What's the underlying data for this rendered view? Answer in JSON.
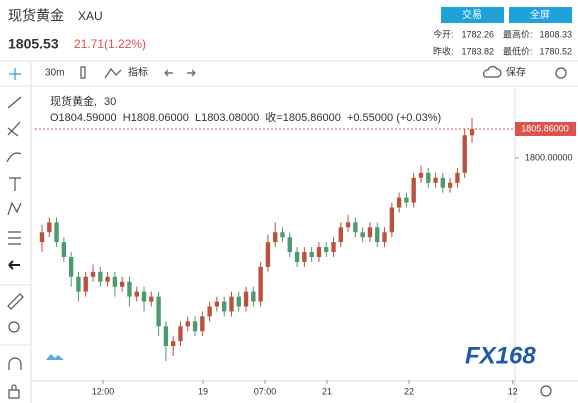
{
  "header": {
    "title": "现货黄金",
    "symbol": "XAU",
    "price": "1805.53",
    "change": "21.71(1.22%)",
    "buttons": [
      "交易",
      "全屏"
    ],
    "stats": [
      [
        "今开:",
        "1782.26",
        "最高价:",
        "1808.33"
      ],
      [
        "昨收:",
        "1783.82",
        "最低价:",
        "1780.52"
      ]
    ]
  },
  "toolbar": {
    "interval": "30m",
    "indicators": "指标",
    "save": "保存"
  },
  "legend": {
    "name": "现货黄金,",
    "interval": "30",
    "ohlc": "O1804.59000  H1808.06000  L1803.08000  收=1805.86000  +0.55000 (+0.03%)"
  },
  "logo": "FX168",
  "chart_data": {
    "type": "candlestick",
    "categories": [
      null,
      null,
      null,
      null,
      null,
      null,
      null,
      null,
      null,
      null,
      null,
      null,
      null,
      null,
      null,
      null,
      null,
      null,
      null,
      null,
      null,
      null,
      null,
      null,
      null,
      null,
      null,
      null,
      null,
      null,
      null,
      null,
      null,
      null,
      null,
      null,
      null,
      null,
      null,
      null,
      null,
      null,
      null,
      null,
      null,
      null,
      null,
      null,
      null,
      null,
      null,
      null,
      null,
      null,
      null,
      null,
      null,
      null,
      null,
      null
    ],
    "open": [
      1783,
      1785,
      1787,
      1783,
      1780,
      1776,
      1773,
      1776,
      1777,
      1775,
      1776,
      1774,
      1775,
      1772,
      1773,
      1771,
      1772,
      1766,
      1762,
      1763,
      1766,
      1767,
      1765,
      1768,
      1770,
      1771,
      1769,
      1772,
      1770,
      1773,
      1771,
      1778,
      1783,
      1785,
      1784,
      1781,
      1779,
      1781,
      1780,
      1782,
      1781,
      1783,
      1786,
      1787,
      1785,
      1784,
      1786,
      1783,
      1785,
      1790,
      1792,
      1791,
      1796,
      1797,
      1795,
      1796,
      1794,
      1795,
      1797,
      1804.59
    ],
    "high": [
      1786.5,
      1788,
      1788,
      1784,
      1781,
      1777,
      1777,
      1778.5,
      1778,
      1777,
      1777,
      1776,
      1776,
      1774,
      1774,
      1773,
      1773,
      1767,
      1764,
      1767,
      1768,
      1768,
      1769,
      1771,
      1772,
      1772,
      1773,
      1773,
      1774,
      1774,
      1779,
      1784.5,
      1787,
      1786,
      1785,
      1782,
      1782,
      1782,
      1783,
      1783,
      1784,
      1787,
      1788.5,
      1788,
      1786,
      1787,
      1787,
      1786,
      1791,
      1793,
      1793,
      1797,
      1798.5,
      1798,
      1797,
      1797,
      1796,
      1798,
      1806,
      1808.06
    ],
    "low": [
      1781,
      1784,
      1782,
      1779,
      1774,
      1771,
      1772,
      1775,
      1774,
      1774,
      1772,
      1773,
      1770,
      1771,
      1769,
      1770,
      1764,
      1759,
      1760,
      1762,
      1765,
      1764,
      1764,
      1767,
      1769,
      1768,
      1768,
      1769,
      1769,
      1770,
      1770,
      1777,
      1782,
      1783,
      1780,
      1778,
      1778,
      1779,
      1779,
      1780,
      1780,
      1782,
      1785,
      1784,
      1783,
      1783,
      1782,
      1782,
      1784,
      1789,
      1790,
      1790,
      1795,
      1794,
      1794,
      1793,
      1793,
      1794,
      1796,
      1803.08
    ],
    "close": [
      1785,
      1787,
      1783,
      1780,
      1776,
      1773,
      1776,
      1777,
      1775,
      1776,
      1774,
      1775,
      1772,
      1773,
      1771,
      1772,
      1766,
      1762,
      1763,
      1766,
      1767,
      1765,
      1768,
      1770,
      1771,
      1769,
      1772,
      1770,
      1773,
      1771,
      1778,
      1783,
      1785,
      1784,
      1781,
      1779,
      1781,
      1780,
      1782,
      1781,
      1783,
      1786,
      1787,
      1785,
      1784,
      1786,
      1783,
      1785,
      1790,
      1792,
      1791,
      1796,
      1797,
      1795,
      1796,
      1794,
      1795,
      1797,
      1804.6,
      1805.86
    ],
    "up_color": "#b9533f",
    "down_color": "#4e9a70",
    "xlim": [
      -0.96,
      64.9
    ],
    "xticks": [
      {
        "value": 8.37,
        "label": "12:00"
      },
      {
        "value": 22.1,
        "label": "19"
      },
      {
        "value": 30.6,
        "label": "07:00"
      },
      {
        "value": 39.1,
        "label": "21"
      },
      {
        "value": 50.36,
        "label": "22"
      },
      {
        "value": 64.6,
        "label": "12"
      }
    ],
    "ylim": [
      1755.15,
      1813.74
    ],
    "yticks": [
      {
        "value": 1800,
        "label": "1800.00000"
      }
    ],
    "last_price": {
      "value": 1805.86,
      "label": "1805.86000"
    },
    "last_color": "#d9534f"
  }
}
